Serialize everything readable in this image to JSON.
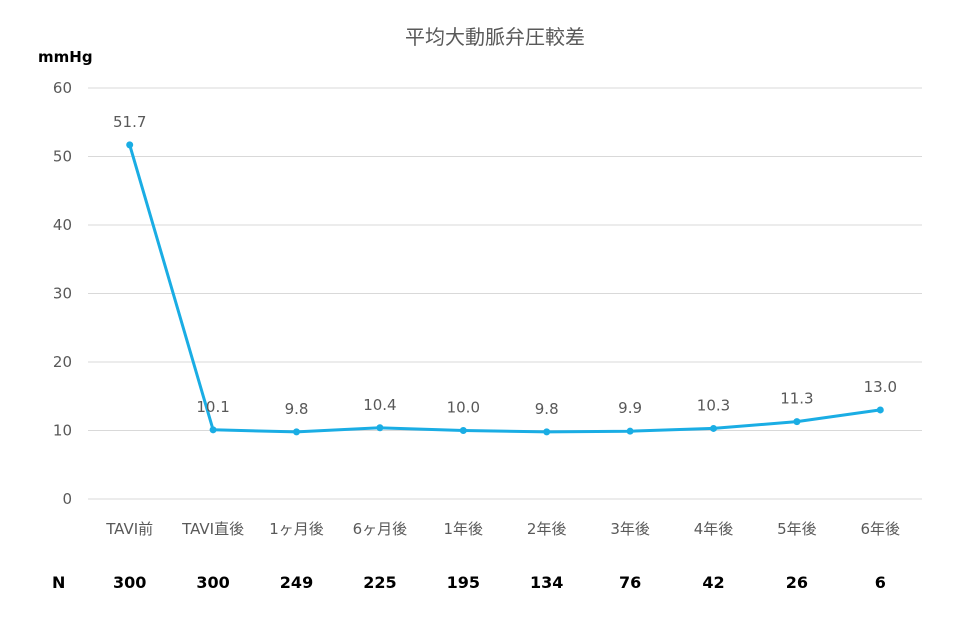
{
  "colors": {
    "series": "#1aade4",
    "grid": "#d9d9d9",
    "text": "#595959"
  },
  "chart_data": {
    "type": "line",
    "title": "平均大動脈弁圧較差",
    "ylabel": "mmHg",
    "ylim": [
      0,
      60
    ],
    "yticks": [
      0,
      10,
      20,
      30,
      40,
      50,
      60
    ],
    "grid": true,
    "categories": [
      "TAVI前",
      "TAVI直後",
      "1ヶ月後",
      "6ヶ月後",
      "1年後",
      "2年後",
      "3年後",
      "4年後",
      "5年後",
      "6年後"
    ],
    "series": [
      {
        "values": [
          51.7,
          10.1,
          9.8,
          10.4,
          10.0,
          9.8,
          9.9,
          10.3,
          11.3,
          13.0
        ]
      }
    ],
    "data_labels": [
      "51.7",
      "10.1",
      "9.8",
      "10.4",
      "10.0",
      "9.8",
      "9.9",
      "10.3",
      "11.3",
      "13.0"
    ]
  },
  "n_row": {
    "label": "N",
    "values": [
      "300",
      "300",
      "249",
      "225",
      "195",
      "134",
      "76",
      "42",
      "26",
      "6"
    ]
  }
}
